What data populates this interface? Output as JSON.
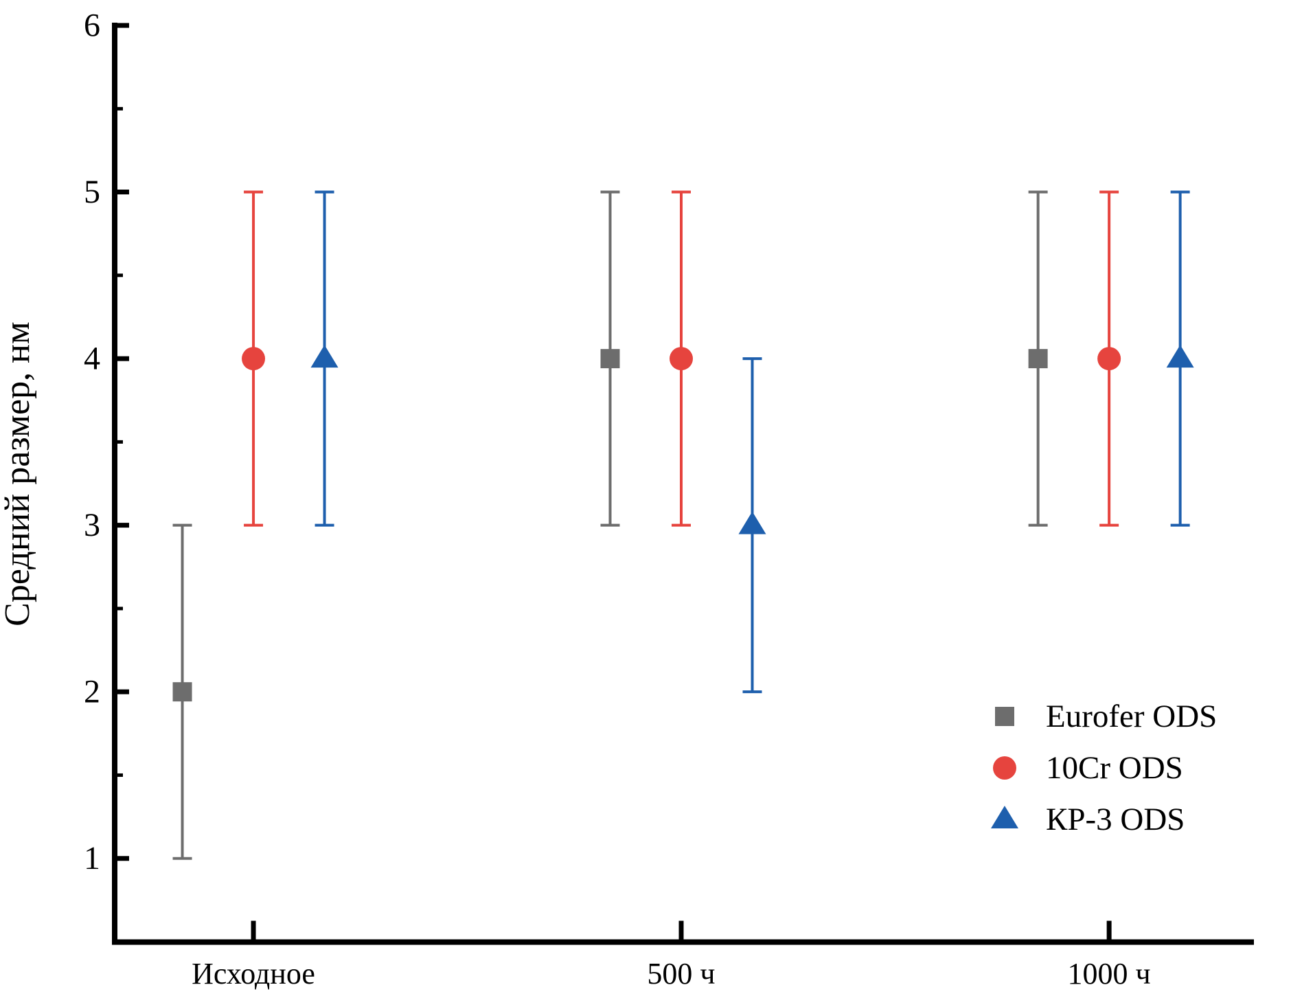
{
  "figure": {
    "background": "#ffffff",
    "text_color": "#000000",
    "axis_color": "#000000"
  },
  "chart_data": {
    "type": "scatter",
    "title": "",
    "xlabel": "",
    "ylabel": "Средний размер, нм",
    "categories": [
      "Исходное",
      "500 ч",
      "1000 ч"
    ],
    "ylim": [
      0.5,
      6
    ],
    "yticks_major": [
      1,
      2,
      3,
      4,
      5,
      6
    ],
    "yticks_minor": [
      1.5,
      2.5,
      3.5,
      4.5,
      5.5
    ],
    "grid": false,
    "legend_position": "lower-right",
    "series": [
      {
        "name": "Eurofer ODS",
        "marker": "square",
        "color": "#6d6d6d",
        "values": [
          2,
          4,
          4
        ],
        "error_minus": [
          1,
          1,
          1
        ],
        "error_plus": [
          1,
          1,
          1
        ]
      },
      {
        "name": "10Cr ODS",
        "marker": "circle",
        "color": "#e6443e",
        "values": [
          4,
          4,
          4
        ],
        "error_minus": [
          1,
          1,
          1
        ],
        "error_plus": [
          1,
          1,
          1
        ]
      },
      {
        "name": "КР-3 ODS",
        "marker": "triangle",
        "color": "#1e5fad",
        "values": [
          4,
          3,
          4
        ],
        "error_minus": [
          1,
          1,
          1
        ],
        "error_plus": [
          1,
          1,
          1
        ]
      }
    ]
  }
}
